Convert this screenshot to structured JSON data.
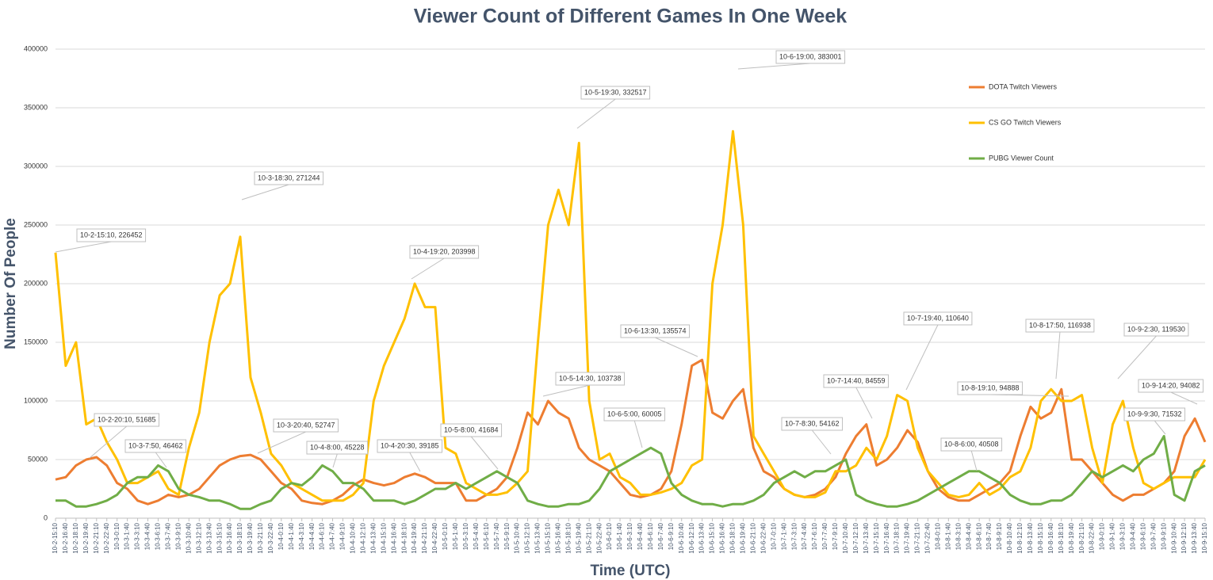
{
  "chart_data": {
    "type": "line",
    "title": "Viewer Count of Different Games In One Week",
    "x_label": "Time (UTC)",
    "y_label": "Number Of People",
    "categories": [
      "10-2-15:10",
      "10-2-16:40",
      "10-2-18:10",
      "10-2-19:40",
      "10-2-21:10",
      "10-2-22:40",
      "10-3-0:10",
      "10-3-1:40",
      "10-3-3:10",
      "10-3-4:40",
      "10-3-6:10",
      "10-3-7:40",
      "10-3-9:10",
      "10-3-10:40",
      "10-3-12:10",
      "10-3-13:40",
      "10-3-15:10",
      "10-3-16:40",
      "10-3-18:10",
      "10-3-19:40",
      "10-3-21:10",
      "10-3-22:40",
      "10-4-0:10",
      "10-4-1:40",
      "10-4-3:10",
      "10-4-4:40",
      "10-4-6:10",
      "10-4-7:40",
      "10-4-9:10",
      "10-4-10:40",
      "10-4-12:10",
      "10-4-13:40",
      "10-4-15:10",
      "10-4-16:40",
      "10-4-18:10",
      "10-4-19:40",
      "10-4-21:10",
      "10-4-22:40",
      "10-5-0:10",
      "10-5-1:40",
      "10-5-3:10",
      "10-5-4:40",
      "10-5-6:10",
      "10-5-7:40",
      "10-5-9:10",
      "10-5-10:40",
      "10-5-12:10",
      "10-5-13:40",
      "10-5-15:10",
      "10-5-16:40",
      "10-5-18:10",
      "10-5-19:40",
      "10-5-21:10",
      "10-5-22:40",
      "10-6-0:10",
      "10-6-1:40",
      "10-6-3:10",
      "10-6-4:40",
      "10-6-6:10",
      "10-6-7:40",
      "10-6-9:10",
      "10-6-10:40",
      "10-6-12:10",
      "10-6-13:40",
      "10-6-15:10",
      "10-6-16:40",
      "10-6-18:10",
      "10-6-19:40",
      "10-6-21:10",
      "10-6-22:40",
      "10-7-0:10",
      "10-7-1:40",
      "10-7-3:10",
      "10-7-4:40",
      "10-7-6:10",
      "10-7-7:40",
      "10-7-9:10",
      "10-7-10:40",
      "10-7-12:10",
      "10-7-13:40",
      "10-7-15:10",
      "10-7-16:40",
      "10-7-18:10",
      "10-7-19:40",
      "10-7-21:10",
      "10-7-22:40",
      "10-8-0:10",
      "10-8-1:40",
      "10-8-3:10",
      "10-8-4:40",
      "10-8-6:10",
      "10-8-7:40",
      "10-8-9:10",
      "10-8-10:40",
      "10-8-12:10",
      "10-8-13:40",
      "10-8-15:10",
      "10-8-16:40",
      "10-8-18:10",
      "10-8-19:40",
      "10-8-21:10",
      "10-8-22:40",
      "10-9-0:10",
      "10-9-1:40",
      "10-9-3:10",
      "10-9-4:40",
      "10-9-6:10",
      "10-9-7:40",
      "10-9-9:10",
      "10-9-10:40",
      "10-9-12:10",
      "10-9-13:40",
      "10-9-15:10"
    ],
    "series": [
      {
        "name": "DOTA Twitch Viewers",
        "color": "#ed7d31",
        "values": [
          33000,
          35000,
          45000,
          50000,
          52000,
          45000,
          30000,
          25000,
          15000,
          12000,
          15000,
          20000,
          18000,
          20000,
          25000,
          35000,
          45000,
          50000,
          53000,
          54000,
          50000,
          40000,
          30000,
          25000,
          15000,
          13000,
          12000,
          15000,
          20000,
          28000,
          33000,
          30000,
          28000,
          30000,
          35000,
          38000,
          35000,
          30000,
          30000,
          30000,
          15000,
          15000,
          20000,
          25000,
          35000,
          60000,
          90000,
          80000,
          100000,
          90000,
          85000,
          60000,
          50000,
          45000,
          40000,
          30000,
          20000,
          18000,
          20000,
          25000,
          40000,
          80000,
          130000,
          135000,
          90000,
          85000,
          100000,
          110000,
          60000,
          40000,
          35000,
          25000,
          20000,
          18000,
          20000,
          25000,
          35000,
          55000,
          70000,
          80000,
          45000,
          50000,
          60000,
          75000,
          65000,
          40000,
          25000,
          18000,
          15000,
          15000,
          20000,
          25000,
          30000,
          40000,
          70000,
          95000,
          85000,
          90000,
          110000,
          50000,
          50000,
          40000,
          30000,
          20000,
          15000,
          20000,
          20000,
          25000,
          30000,
          40000,
          70000,
          85000,
          65000
        ]
      },
      {
        "name": "CS GO Twitch Viewers",
        "color": "#ffc000",
        "values": [
          226452,
          130000,
          150000,
          80000,
          85000,
          65000,
          50000,
          30000,
          30000,
          35000,
          40000,
          25000,
          20000,
          60000,
          90000,
          150000,
          190000,
          200000,
          240000,
          120000,
          90000,
          55000,
          45000,
          30000,
          25000,
          20000,
          15000,
          15000,
          15000,
          20000,
          30000,
          100000,
          130000,
          150000,
          170000,
          200000,
          180000,
          180000,
          60000,
          55000,
          30000,
          25000,
          20000,
          20000,
          22000,
          30000,
          40000,
          150000,
          250000,
          280000,
          250000,
          320000,
          100000,
          50000,
          55000,
          35000,
          30000,
          20000,
          20000,
          22000,
          25000,
          30000,
          45000,
          50000,
          200000,
          250000,
          330000,
          250000,
          70000,
          55000,
          40000,
          25000,
          20000,
          18000,
          18000,
          22000,
          40000,
          40000,
          45000,
          60000,
          50000,
          70000,
          105000,
          100000,
          60000,
          40000,
          30000,
          20000,
          18000,
          20000,
          30000,
          20000,
          25000,
          35000,
          40000,
          60000,
          100000,
          110000,
          100000,
          100000,
          105000,
          60000,
          30000,
          80000,
          100000,
          60000,
          30000,
          25000,
          30000,
          35000,
          35000,
          35000,
          50000
        ]
      },
      {
        "name": "PUBG Viewer Count",
        "color": "#70ad47",
        "values": [
          15000,
          15000,
          10000,
          10000,
          12000,
          15000,
          20000,
          30000,
          35000,
          35000,
          45000,
          40000,
          25000,
          20000,
          18000,
          15000,
          15000,
          12000,
          8000,
          8000,
          12000,
          15000,
          25000,
          30000,
          28000,
          35000,
          45000,
          40000,
          30000,
          30000,
          25000,
          15000,
          15000,
          15000,
          12000,
          15000,
          20000,
          25000,
          25000,
          30000,
          25000,
          30000,
          35000,
          40000,
          35000,
          30000,
          15000,
          12000,
          10000,
          10000,
          12000,
          12000,
          15000,
          25000,
          40000,
          45000,
          50000,
          55000,
          60000,
          55000,
          30000,
          20000,
          15000,
          12000,
          12000,
          10000,
          12000,
          12000,
          15000,
          20000,
          30000,
          35000,
          40000,
          35000,
          40000,
          40000,
          45000,
          50000,
          20000,
          15000,
          12000,
          10000,
          10000,
          12000,
          15000,
          20000,
          25000,
          30000,
          35000,
          40000,
          40000,
          35000,
          30000,
          20000,
          15000,
          12000,
          12000,
          15000,
          15000,
          20000,
          30000,
          40000,
          35000,
          40000,
          45000,
          40000,
          50000,
          55000,
          70000,
          20000,
          15000,
          40000,
          45000
        ]
      }
    ],
    "ylim": [
      0,
      400000
    ],
    "yticks": [
      0,
      50000,
      100000,
      150000,
      200000,
      250000,
      300000,
      350000,
      400000
    ],
    "grid": true,
    "legend": "right",
    "annotations": [
      "10-2-15:10, 226452",
      "10-2-20:10, 51685",
      "10-3-7:50, 46462",
      "10-3-18:30, 271244",
      "10-3-20:40, 52747",
      "10-4-8:00, 45228",
      "10-4-19:20, 203998",
      "10-4-20:30, 39185",
      "10-5-8:00, 41684",
      "10-5-19:30, 332517",
      "10-5-14:30, 103738",
      "10-6-19:00, 383001",
      "10-6-13:30, 135574",
      "10-6-5:00, 60005",
      "10-7-8:30, 54162",
      "10-7-14:40, 84559",
      "10-7-19:40, 110640",
      "10-8-6:00, 40508",
      "10-8-17:50, 116938",
      "10-8-19:10, 94888",
      "10-9-2:30, 119530",
      "10-9-14:20, 94082",
      "10-9-9:30, 71532"
    ]
  }
}
